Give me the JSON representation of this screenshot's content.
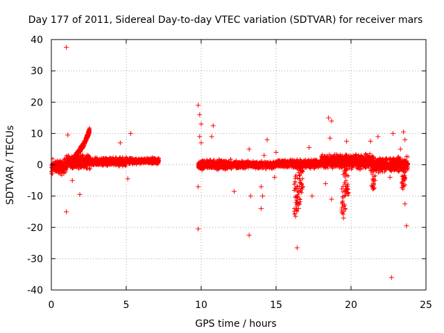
{
  "chart_data": {
    "type": "scatter",
    "title": "Day 177 of 2011, Sidereal Day-to-day VTEC variation (SDTVAR) for receiver mars",
    "xlabel": "GPS time / hours",
    "ylabel": "SDTVAR / TECUs",
    "xlim": [
      0,
      25
    ],
    "ylim": [
      -40,
      40
    ],
    "xticks": [
      0,
      5,
      10,
      15,
      20,
      25
    ],
    "yticks": [
      -40,
      -30,
      -20,
      -10,
      0,
      10,
      20,
      30,
      40
    ],
    "grid": true,
    "marker": "+",
    "color": "#ff0000",
    "series": [
      {
        "name": "SDTVAR",
        "dense_bands": [
          {
            "x_start": 0.0,
            "x_end": 1.0,
            "y_low": -4,
            "y_high": 2.5
          },
          {
            "x_start": 1.0,
            "x_end": 2.6,
            "y_low": -2,
            "y_high": 4
          },
          {
            "x_start": 2.6,
            "x_end": 5.0,
            "y_low": -1,
            "y_high": 3
          },
          {
            "x_start": 5.0,
            "x_end": 7.2,
            "y_low": 0,
            "y_high": 2.5
          },
          {
            "x_start": 9.8,
            "x_end": 12.0,
            "y_low": -2,
            "y_high": 2
          },
          {
            "x_start": 12.0,
            "x_end": 15.0,
            "y_low": -1.5,
            "y_high": 1.5
          },
          {
            "x_start": 15.0,
            "x_end": 18.0,
            "y_low": -1.5,
            "y_high": 2
          },
          {
            "x_start": 18.0,
            "x_end": 21.5,
            "y_low": -2,
            "y_high": 4
          },
          {
            "x_start": 21.5,
            "x_end": 23.8,
            "y_low": -3,
            "y_high": 3
          }
        ],
        "rising_branch": [
          {
            "x": 1.2,
            "y": 1
          },
          {
            "x": 1.5,
            "y": 2
          },
          {
            "x": 1.8,
            "y": 4
          },
          {
            "x": 2.1,
            "y": 6
          },
          {
            "x": 2.4,
            "y": 9
          },
          {
            "x": 2.55,
            "y": 11
          }
        ],
        "dips": [
          {
            "x": 16.3,
            "y": -16
          },
          {
            "x": 16.5,
            "y": -13
          },
          {
            "x": 16.7,
            "y": -9
          },
          {
            "x": 19.5,
            "y": -16
          },
          {
            "x": 19.7,
            "y": -10
          },
          {
            "x": 21.5,
            "y": -8
          },
          {
            "x": 23.5,
            "y": -8
          }
        ],
        "points": [
          {
            "x": 1.0,
            "y": 37.5
          },
          {
            "x": 1.0,
            "y": -15
          },
          {
            "x": 1.1,
            "y": 9.5
          },
          {
            "x": 1.4,
            "y": -5
          },
          {
            "x": 1.9,
            "y": -9.5
          },
          {
            "x": 4.6,
            "y": 7
          },
          {
            "x": 5.3,
            "y": 10
          },
          {
            "x": 5.1,
            "y": -4.5
          },
          {
            "x": 9.8,
            "y": 19
          },
          {
            "x": 9.9,
            "y": 16
          },
          {
            "x": 10.0,
            "y": 13
          },
          {
            "x": 9.9,
            "y": 9
          },
          {
            "x": 10.0,
            "y": 7
          },
          {
            "x": 9.8,
            "y": -7
          },
          {
            "x": 9.8,
            "y": -20.5
          },
          {
            "x": 10.8,
            "y": 12.5
          },
          {
            "x": 10.7,
            "y": 9
          },
          {
            "x": 12.2,
            "y": -8.5
          },
          {
            "x": 13.2,
            "y": 5
          },
          {
            "x": 13.3,
            "y": -10
          },
          {
            "x": 13.2,
            "y": -22.5
          },
          {
            "x": 14.0,
            "y": -7
          },
          {
            "x": 14.1,
            "y": -10
          },
          {
            "x": 14.0,
            "y": -14
          },
          {
            "x": 14.4,
            "y": 8
          },
          {
            "x": 14.2,
            "y": 3
          },
          {
            "x": 15.0,
            "y": 4
          },
          {
            "x": 14.9,
            "y": -4
          },
          {
            "x": 16.4,
            "y": -26.5
          },
          {
            "x": 16.5,
            "y": -14
          },
          {
            "x": 16.3,
            "y": -16.5
          },
          {
            "x": 17.4,
            "y": -10
          },
          {
            "x": 17.2,
            "y": 5.5
          },
          {
            "x": 18.5,
            "y": 15
          },
          {
            "x": 18.7,
            "y": 14
          },
          {
            "x": 18.6,
            "y": 8.5
          },
          {
            "x": 18.7,
            "y": -11
          },
          {
            "x": 18.3,
            "y": -6
          },
          {
            "x": 19.7,
            "y": 7.5
          },
          {
            "x": 19.4,
            "y": -15
          },
          {
            "x": 19.5,
            "y": -17
          },
          {
            "x": 21.3,
            "y": 7.5
          },
          {
            "x": 21.5,
            "y": -6
          },
          {
            "x": 21.8,
            "y": 9
          },
          {
            "x": 22.6,
            "y": -4
          },
          {
            "x": 22.7,
            "y": -36
          },
          {
            "x": 22.8,
            "y": 10
          },
          {
            "x": 23.5,
            "y": 10.5
          },
          {
            "x": 23.6,
            "y": 8
          },
          {
            "x": 23.6,
            "y": -12.5
          },
          {
            "x": 23.7,
            "y": -19.5
          },
          {
            "x": 23.3,
            "y": 5
          }
        ]
      }
    ]
  }
}
